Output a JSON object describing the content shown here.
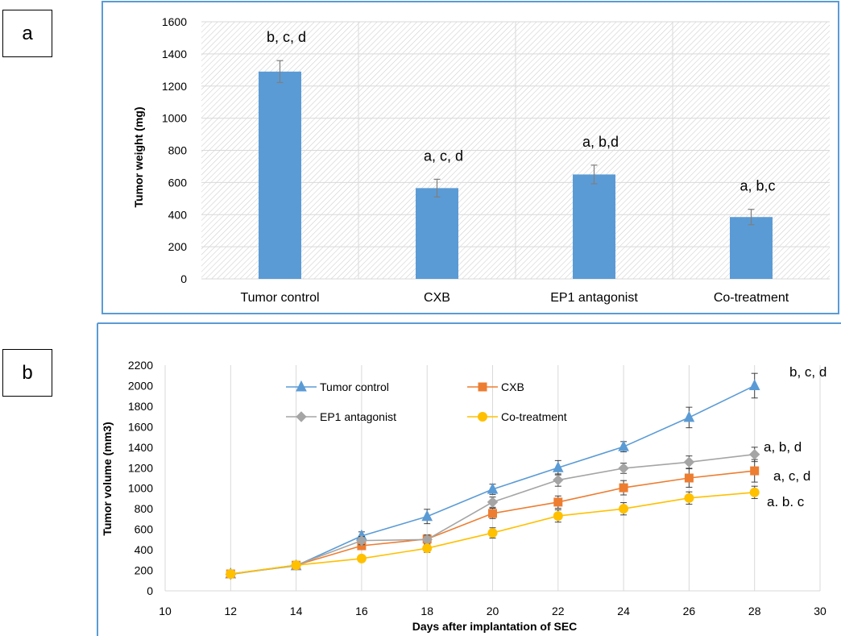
{
  "panels": {
    "a": "a",
    "b": "b"
  },
  "colors": {
    "bar": "#5b9bd5",
    "tumor_control": "#5b9bd5",
    "cxb": "#ed7d31",
    "ep1_antagonist": "#a5a5a5",
    "co_treatment": "#ffc000",
    "frame": "#5b9bd5",
    "grid": "#d9d9d9"
  },
  "chart_data": [
    {
      "type": "bar",
      "panel": "a",
      "title": "",
      "xlabel": "",
      "ylabel": "Tumor weight (mg)",
      "ylim": [
        0,
        1600
      ],
      "yticks": [
        0,
        200,
        400,
        600,
        800,
        1000,
        1200,
        1400,
        1600
      ],
      "categories": [
        "Tumor control",
        "CXB",
        "EP1 antagonist",
        "Co-treatment"
      ],
      "values": [
        1290,
        565,
        650,
        385
      ],
      "errors": [
        68,
        55,
        58,
        48
      ],
      "annotations": [
        "b, c, d",
        "a, c, d",
        "a, b,d",
        "a, b,c"
      ],
      "grid": true,
      "hatched_background": true
    },
    {
      "type": "line",
      "panel": "b",
      "title": "",
      "xlabel": "Days after implantation of SEC",
      "ylabel": "Tumor volume (mm3)",
      "xlim": [
        10,
        30
      ],
      "ylim": [
        0,
        2200
      ],
      "xticks": [
        10,
        12,
        14,
        16,
        18,
        20,
        22,
        24,
        26,
        28,
        30
      ],
      "yticks": [
        0,
        200,
        400,
        600,
        800,
        1000,
        1200,
        1400,
        1600,
        1800,
        2000,
        2200
      ],
      "x": [
        12,
        14,
        16,
        18,
        20,
        22,
        24,
        26,
        28
      ],
      "series": [
        {
          "name": "Tumor control",
          "marker": "triangle",
          "color": "#5b9bd5",
          "values": [
            165,
            245,
            535,
            725,
            990,
            1200,
            1405,
            1690,
            2000
          ],
          "errors": [
            20,
            25,
            40,
            70,
            50,
            70,
            50,
            100,
            120
          ],
          "annotation": "b, c, d"
        },
        {
          "name": "CXB",
          "marker": "square",
          "color": "#ed7d31",
          "values": [
            165,
            250,
            440,
            505,
            755,
            865,
            1005,
            1100,
            1170
          ],
          "errors": [
            20,
            25,
            35,
            40,
            50,
            60,
            70,
            90,
            110
          ],
          "annotation": "a, c, d"
        },
        {
          "name": "EP1 antagonist",
          "marker": "diamond",
          "color": "#a5a5a5",
          "values": [
            160,
            250,
            490,
            500,
            865,
            1080,
            1195,
            1255,
            1330
          ],
          "errors": [
            20,
            25,
            40,
            45,
            50,
            60,
            50,
            60,
            70
          ],
          "annotation": "a, b, d"
        },
        {
          "name": "Co-treatment",
          "marker": "circle",
          "color": "#ffc000",
          "values": [
            165,
            250,
            315,
            415,
            565,
            730,
            800,
            905,
            960
          ],
          "errors": [
            20,
            25,
            30,
            40,
            50,
            60,
            60,
            60,
            60
          ],
          "annotation": "a. b. c"
        }
      ],
      "legend": "top-center",
      "grid": true
    }
  ]
}
